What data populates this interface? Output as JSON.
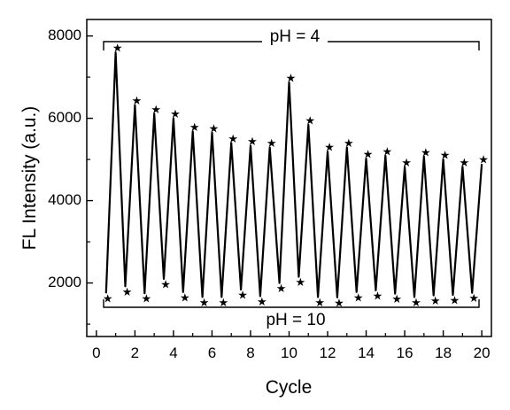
{
  "chart_data": {
    "type": "line",
    "title": "",
    "xlabel": "Cycle",
    "ylabel": "FL Intensity (a.u.)",
    "xlim": [
      -0.5,
      20.5
    ],
    "ylim": [
      700,
      8400
    ],
    "x_ticks": [
      0,
      2,
      4,
      6,
      8,
      10,
      12,
      14,
      16,
      18,
      20
    ],
    "x_tick_labels": [
      "0",
      "2",
      "4",
      "6",
      "8",
      "10",
      "12",
      "14",
      "16",
      "18",
      "20"
    ],
    "y_ticks": [
      2000,
      4000,
      6000,
      8000
    ],
    "y_tick_labels": [
      "2000",
      "4000",
      "6000",
      "8000"
    ],
    "marker": "★",
    "line_color": "#000000",
    "series": [
      {
        "x": [
          0.5,
          1,
          1.5,
          2,
          2.5,
          3,
          3.5,
          4,
          4.5,
          5,
          5.5,
          6,
          6.5,
          7,
          7.5,
          8,
          8.5,
          9,
          9.5,
          10,
          10.5,
          11,
          11.5,
          12,
          12.5,
          13,
          13.5,
          14,
          14.5,
          15,
          15.5,
          16,
          16.5,
          17,
          17.5,
          18,
          18.5,
          19,
          19.5,
          20
        ],
        "y": [
          1750,
          7600,
          1920,
          6320,
          1750,
          6110,
          2100,
          6000,
          1780,
          5680,
          1660,
          5650,
          1660,
          5400,
          1840,
          5330,
          1680,
          5290,
          2000,
          6870,
          2150,
          5840,
          1660,
          5190,
          1650,
          5290,
          1780,
          5020,
          1820,
          5090,
          1740,
          4820,
          1660,
          5070,
          1700,
          5000,
          1710,
          4820,
          1760,
          4890
        ]
      }
    ],
    "annotations": {
      "top_label": "pH = 4",
      "bottom_label": "pH = 10"
    },
    "grid": false,
    "legend": "none"
  }
}
